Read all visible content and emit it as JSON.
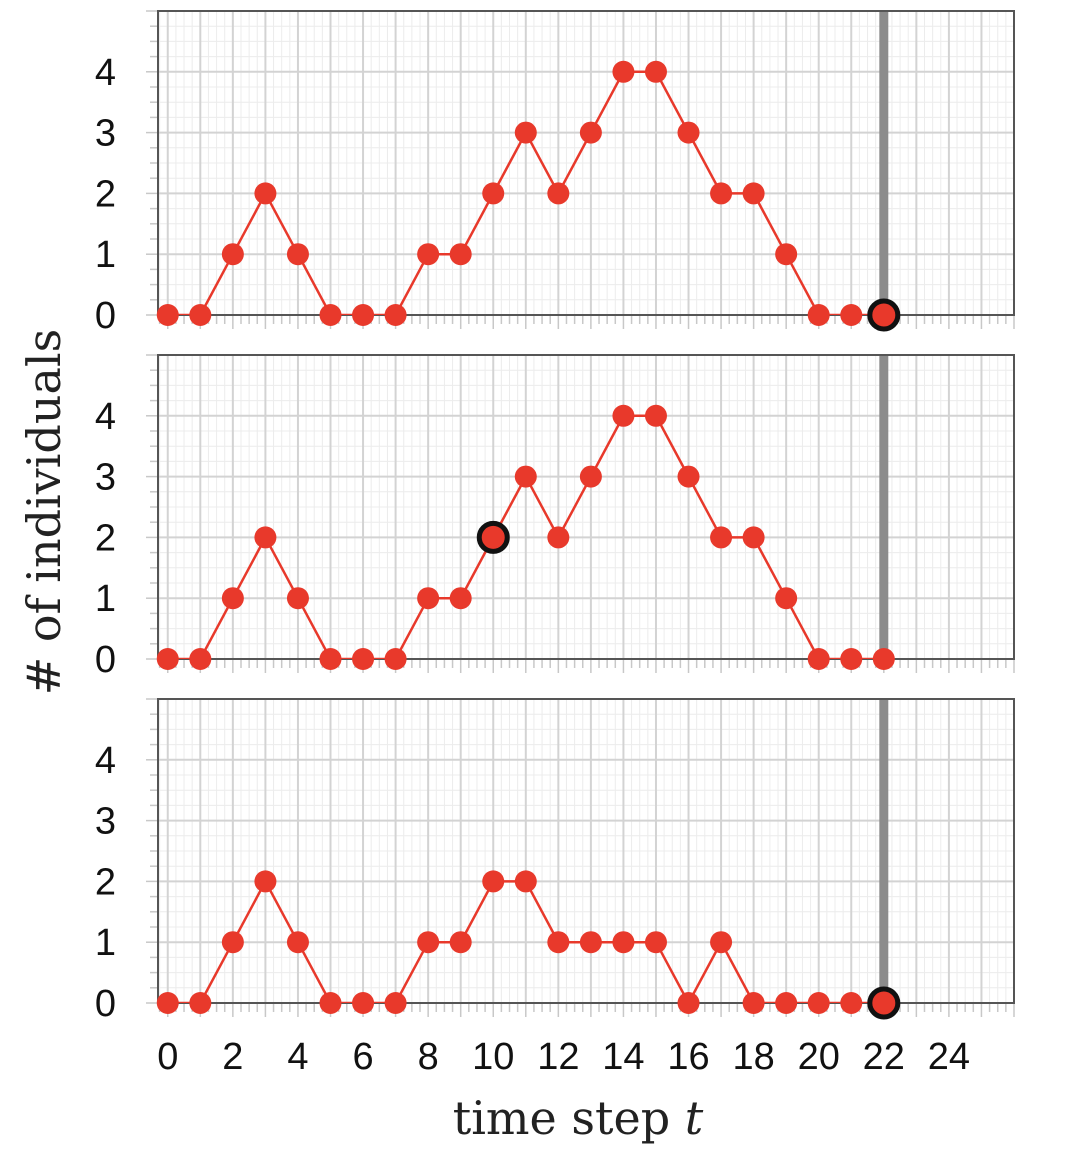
{
  "chart_data": {
    "type": "line",
    "xlabel": "time step ",
    "xlabel_var": "t",
    "ylabel": "# of individuals",
    "x_ticks": [
      0,
      2,
      4,
      6,
      8,
      10,
      12,
      14,
      16,
      18,
      20,
      22,
      24
    ],
    "y_ticks": [
      0,
      1,
      2,
      3,
      4
    ],
    "xlim": [
      -0.3,
      26
    ],
    "ylim": [
      0,
      5
    ],
    "grid": true,
    "colors": {
      "line": "#e8392b",
      "marker": "#e8392b",
      "highlight_ring": "#111111",
      "vertical_marker": "#8c8c8c",
      "grid": "#d3d3d3",
      "frame": "#555555"
    },
    "vertical_marker_x": 22,
    "x": [
      0,
      1,
      2,
      3,
      4,
      5,
      6,
      7,
      8,
      9,
      10,
      11,
      12,
      13,
      14,
      15,
      16,
      17,
      18,
      19,
      20,
      21,
      22
    ],
    "panels": [
      {
        "values": [
          0,
          0,
          1,
          2,
          1,
          0,
          0,
          0,
          1,
          1,
          2,
          3,
          2,
          3,
          4,
          4,
          3,
          2,
          2,
          1,
          0,
          0,
          0
        ],
        "highlight_x": 22
      },
      {
        "values": [
          0,
          0,
          1,
          2,
          1,
          0,
          0,
          0,
          1,
          1,
          2,
          3,
          2,
          3,
          4,
          4,
          3,
          2,
          2,
          1,
          0,
          0,
          0
        ],
        "highlight_x": 10
      },
      {
        "values": [
          0,
          0,
          1,
          2,
          1,
          0,
          0,
          0,
          1,
          1,
          2,
          2,
          1,
          1,
          1,
          1,
          0,
          1,
          0,
          0,
          0,
          0,
          0
        ],
        "highlight_x": 22
      }
    ]
  }
}
